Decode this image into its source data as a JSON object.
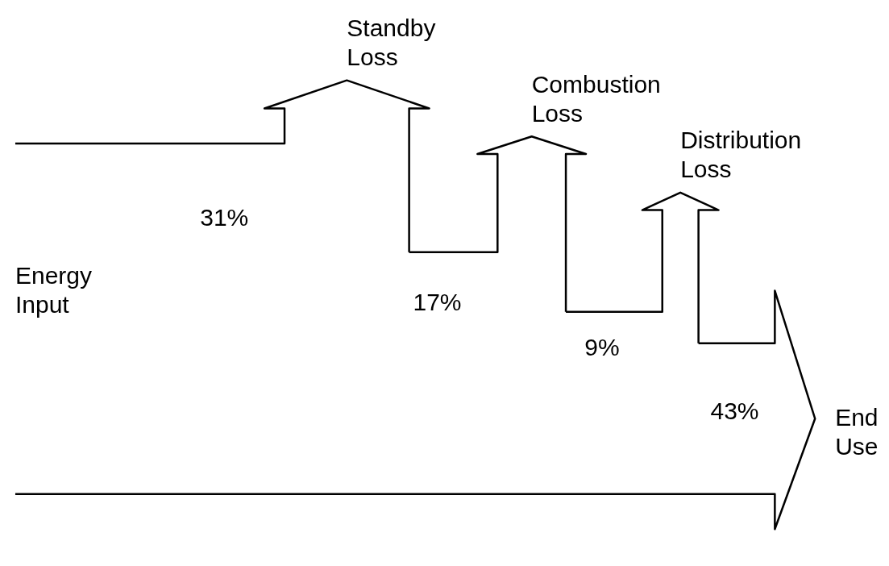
{
  "chart_data": {
    "type": "other",
    "categories": [
      "Standby Loss",
      "Combustion Loss",
      "Distribution Loss",
      "End Use"
    ],
    "values": [
      31,
      17,
      9,
      43
    ],
    "value_labels": [
      "31%",
      "17%",
      "9%",
      "43%"
    ],
    "annotations": [
      "Energy Input"
    ]
  }
}
